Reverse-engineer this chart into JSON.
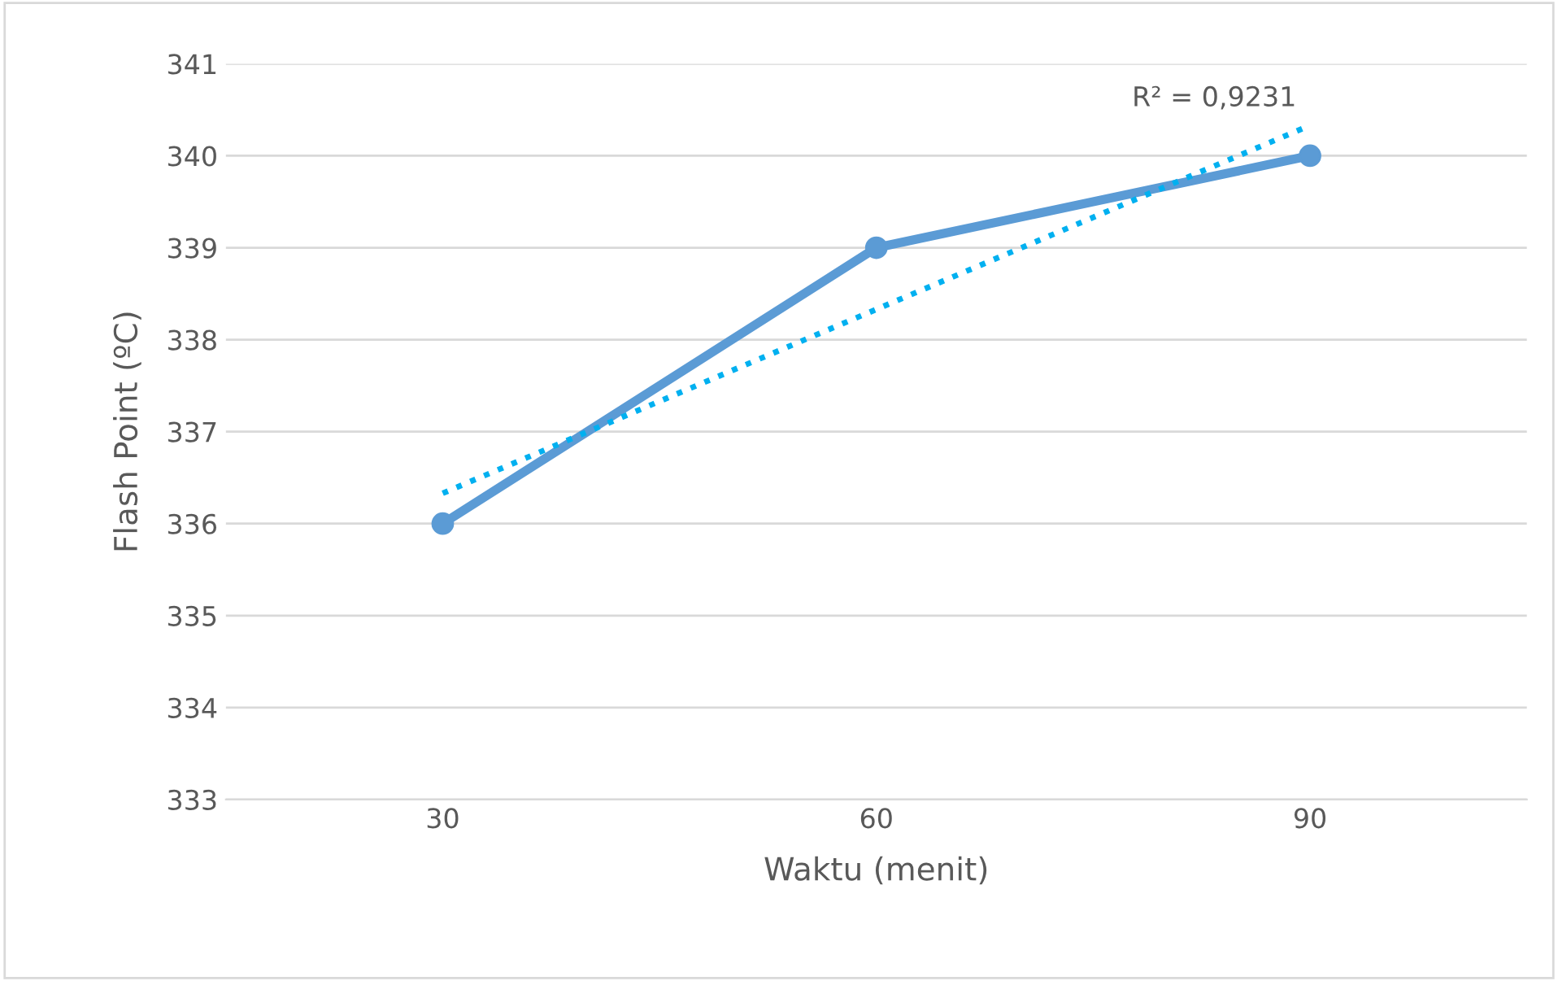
{
  "chart_data": {
    "type": "line",
    "xlabel": "Waktu (menit)",
    "ylabel": "Flash Point (ºC)",
    "categories": [
      "30",
      "60",
      "90"
    ],
    "series": [
      {
        "color": "#5b9bd5",
        "values": [
          336,
          339,
          340
        ],
        "marker": "circle",
        "line_style": "solid"
      },
      {
        "color": "#00b0f0",
        "values": [
          336.33,
          338.33,
          340.33
        ],
        "marker": "none",
        "line_style": "dotted"
      }
    ],
    "annotations": [
      {
        "text": "R² = 0,9231",
        "x": "90",
        "y": 340.33
      }
    ],
    "ylim": [
      333,
      341
    ],
    "yticks": [
      333,
      334,
      335,
      336,
      337,
      338,
      339,
      340,
      341
    ],
    "grid": "y",
    "legend": false
  }
}
